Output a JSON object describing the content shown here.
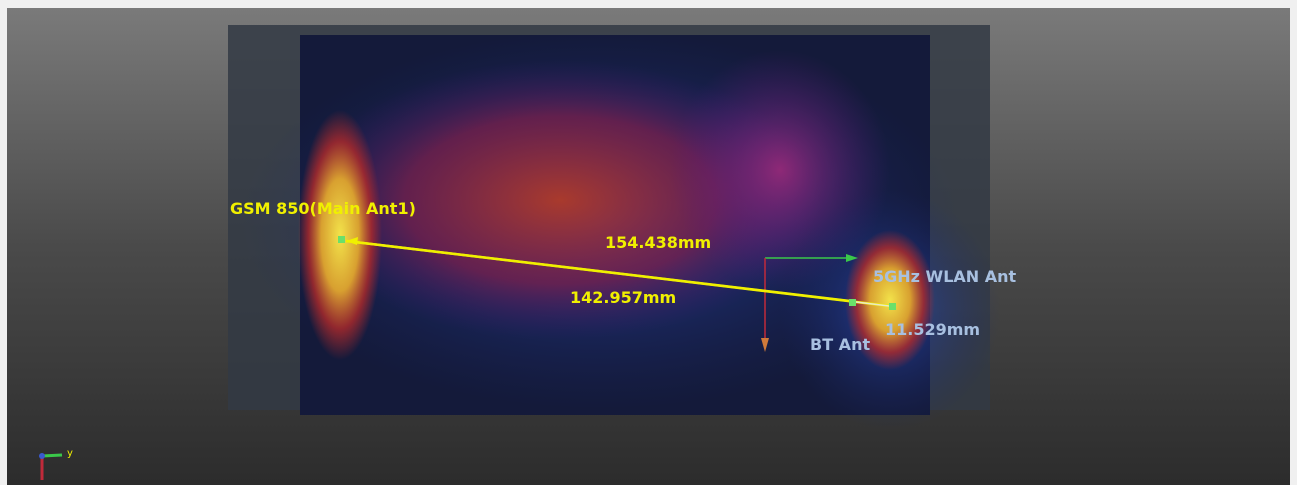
{
  "viewport": {
    "antennas": [
      {
        "label": "GSM 850(Main Ant1)"
      },
      {
        "label": "5GHz WLAN Ant"
      },
      {
        "label": "BT Ant"
      }
    ],
    "measurements": [
      {
        "label": "154.438mm"
      },
      {
        "label": "142.957mm"
      },
      {
        "label": "11.529mm"
      }
    ],
    "axis_triad": {
      "y_label": "y"
    }
  }
}
